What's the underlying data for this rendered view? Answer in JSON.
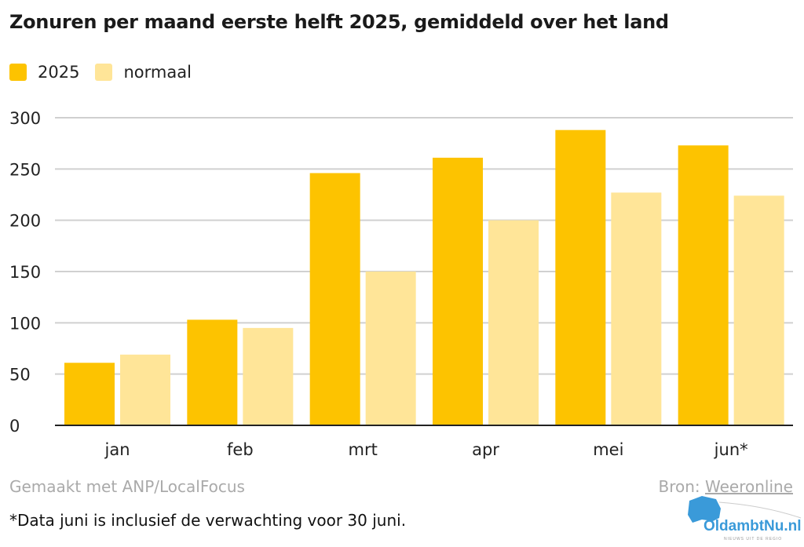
{
  "chart_data": {
    "type": "bar",
    "title": "Zonuren per maand eerste helft 2025, gemiddeld over het land",
    "categories": [
      "jan",
      "feb",
      "mrt",
      "apr",
      "mei",
      "jun*"
    ],
    "series": [
      {
        "name": "2025",
        "color": "#FDC300",
        "values": [
          61,
          103,
          246,
          261,
          288,
          273
        ]
      },
      {
        "name": "normaal",
        "color": "#FFE598",
        "values": [
          69,
          95,
          150,
          200,
          227,
          224
        ]
      }
    ],
    "ylim": [
      0,
      300
    ],
    "yticks": [
      0,
      50,
      100,
      150,
      200,
      250,
      300
    ],
    "grid": true,
    "legend": "top-left",
    "xlabel": "",
    "ylabel": ""
  },
  "footer": {
    "made_with": "Gemaakt met ANP/LocalFocus",
    "source_label": "Bron:",
    "source_link": "Weeronline",
    "note": "*Data juni is inclusief de verwachting voor 30 juni."
  },
  "watermark": {
    "text": "OldambtNu.nl",
    "tagline": "NIEUWS UIT DE REGIO",
    "color": "#3A9AD9"
  }
}
